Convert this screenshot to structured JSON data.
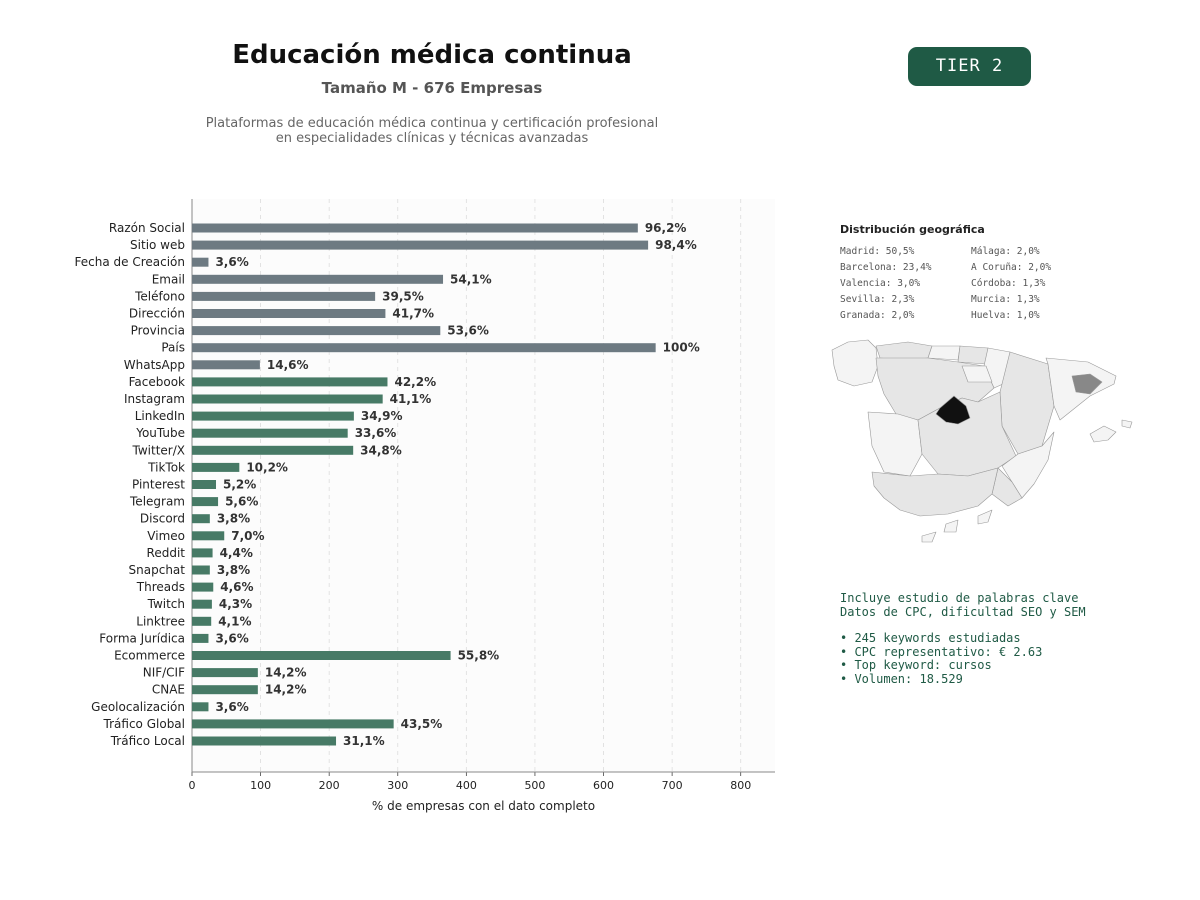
{
  "header": {
    "title": "Educación médica continua",
    "subtitle": "Tamaño M - 676 Empresas",
    "description_lines": [
      "Plataformas de educación médica continua y certificación profesional",
      "en especialidades clínicas y técnicas avanzadas"
    ],
    "tier_badge": "TIER 2"
  },
  "chart_data": {
    "type": "bar",
    "orientation": "horizontal",
    "xlabel": "% de empresas con el dato completo",
    "xlim": [
      0,
      850
    ],
    "xticks": [
      0,
      100,
      200,
      300,
      400,
      500,
      600,
      700,
      800
    ],
    "grid": "vertical-dashed",
    "colors": {
      "gray": "#6d7a82",
      "green": "#477a66"
    },
    "categories": [
      "Razón Social",
      "Sitio web",
      "Fecha de Creación",
      "Email",
      "Teléfono",
      "Dirección",
      "Provincia",
      "País",
      "WhatsApp",
      "Facebook",
      "Instagram",
      "LinkedIn",
      "YouTube",
      "Twitter/X",
      "TikTok",
      "Pinterest",
      "Telegram",
      "Discord",
      "Vimeo",
      "Reddit",
      "Snapchat",
      "Threads",
      "Twitch",
      "Linktree",
      "Forma Jurídica",
      "Ecommerce",
      "NIF/CIF",
      "CNAE",
      "Geolocalización",
      "Tráfico Global",
      "Tráfico Local"
    ],
    "values": [
      650,
      665,
      24,
      366,
      267,
      282,
      362,
      676,
      99,
      285,
      278,
      236,
      227,
      235,
      69,
      35,
      38,
      26,
      47,
      30,
      26,
      31,
      29,
      28,
      24,
      377,
      96,
      96,
      24,
      294,
      210
    ],
    "labels": [
      "96,2%",
      "98,4%",
      "3,6%",
      "54,1%",
      "39,5%",
      "41,7%",
      "53,6%",
      "100%",
      "14,6%",
      "42,2%",
      "41,1%",
      "34,9%",
      "33,6%",
      "34,8%",
      "10,2%",
      "5,2%",
      "5,6%",
      "3,8%",
      "7,0%",
      "4,4%",
      "3,8%",
      "4,6%",
      "4,3%",
      "4,1%",
      "3,6%",
      "55,8%",
      "14,2%",
      "14,2%",
      "3,6%",
      "43,5%",
      "31,1%"
    ],
    "bar_colors": [
      "gray",
      "gray",
      "gray",
      "gray",
      "gray",
      "gray",
      "gray",
      "gray",
      "gray",
      "green",
      "green",
      "green",
      "green",
      "green",
      "green",
      "green",
      "green",
      "green",
      "green",
      "green",
      "green",
      "green",
      "green",
      "green",
      "green",
      "green",
      "green",
      "green",
      "green",
      "green",
      "green"
    ]
  },
  "geo": {
    "title": "Distribución geográfica",
    "items": [
      "Madrid: 50,5%",
      "Málaga: 2,0%",
      "Barcelona: 23,4%",
      "A Coruña: 2,0%",
      "Valencia: 3,0%",
      "Córdoba: 1,3%",
      "Sevilla: 2,3%",
      "Murcia: 1,3%",
      "Granada: 2,0%",
      "Huelva: 1,0%"
    ],
    "map_colors": {
      "madrid": "#111111",
      "barcelona": "#888888",
      "others": "#e6e6e6",
      "light": "#f4f4f4",
      "border": "#999999"
    }
  },
  "keywords": {
    "intro_lines": [
      "Incluye estudio de palabras clave",
      "Datos de CPC, dificultad SEO y SEM"
    ],
    "bullets": [
      "• 245 keywords estudiadas",
      "• CPC representativo: € 2.63",
      "• Top keyword: cursos",
      "• Volumen: 18.529"
    ]
  }
}
